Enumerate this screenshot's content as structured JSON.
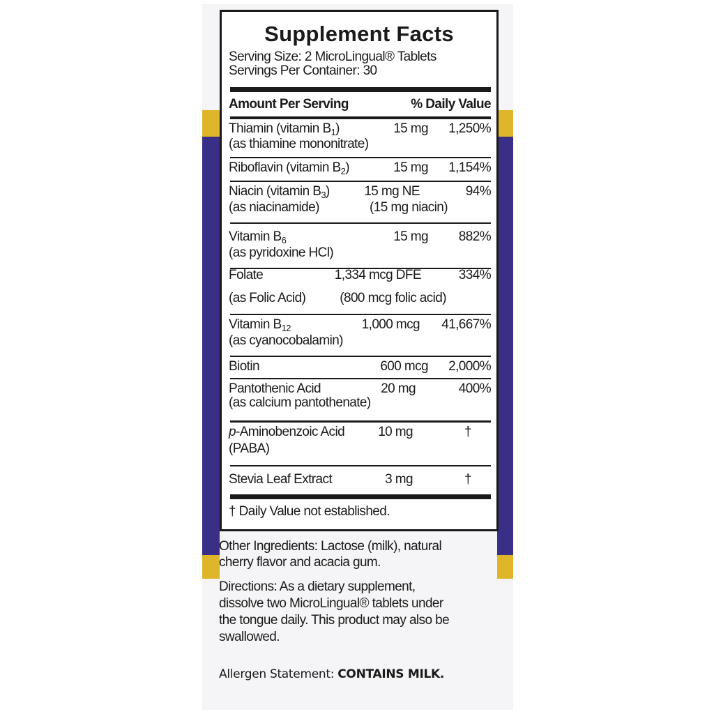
{
  "colors": {
    "purple": "#3a2f86",
    "yellow": "#dfb62a",
    "panel": "#f5f5f7"
  },
  "title": "Supplement Facts",
  "serving_size": "Serving Size: 2 MicroLingual® Tablets",
  "servings_per_container": "Servings Per Container: 30",
  "header": {
    "amount": "Amount Per Serving",
    "dv": "% Daily Value"
  },
  "rows": [
    {
      "name": "Thiamin (vitamin B",
      "sub": "1",
      "close": ")",
      "detail": "(as thiamine mononitrate)",
      "amount": "15 mg",
      "dv": "1,250%"
    },
    {
      "name": "Riboflavin (vitamin B",
      "sub": "2",
      "close": ")",
      "amount": "15 mg",
      "dv": "1,154%"
    },
    {
      "name": "Niacin (vitamin B",
      "sub": "3",
      "close": ")",
      "detail": "(as niacinamide)",
      "amount": "15 mg NE",
      "amount_detail": "(15 mg niacin)",
      "dv": "94%"
    },
    {
      "name": "Vitamin B",
      "sub": "6",
      "close": "",
      "detail": "(as pyridoxine  HCl)",
      "amount": "15 mg",
      "dv": "882%"
    },
    {
      "name": "Folate",
      "detail": "(as Folic Acid)",
      "amount": "1,334 mcg DFE",
      "amount_detail": "(800 mcg folic acid)",
      "dv": "334%"
    },
    {
      "name": "Vitamin B",
      "sub": "12",
      "close": "",
      "detail": "(as cyanocobalamin)",
      "amount": "1,000 mcg",
      "dv": "41,667%"
    },
    {
      "name": "Biotin",
      "amount": "600 mcg",
      "dv": "2,000%"
    },
    {
      "name": "Pantothenic Acid",
      "detail": "(as calcium pantothenate)",
      "amount": "20 mg",
      "dv": "400%"
    },
    {
      "name_italic": "p",
      "name": "-Aminobenzoic Acid",
      "detail": "(PABA)",
      "amount": "10 mg",
      "dv": "†"
    },
    {
      "name": "Stevia Leaf Extract",
      "amount": "3 mg",
      "dv": "†"
    }
  ],
  "footnote": "† Daily Value not established.",
  "other_ingredients": [
    "Other Ingredients: Lactose (milk), natural",
    "cherry flavor and acacia gum."
  ],
  "directions": [
    "Directions: As a dietary supplement,",
    "dissolve two MicroLingual® tablets under",
    "the tongue daily. This product may also be",
    "swallowed."
  ],
  "allergen": {
    "label": "Allergen Statement: ",
    "value": "CONTAINS MILK."
  }
}
